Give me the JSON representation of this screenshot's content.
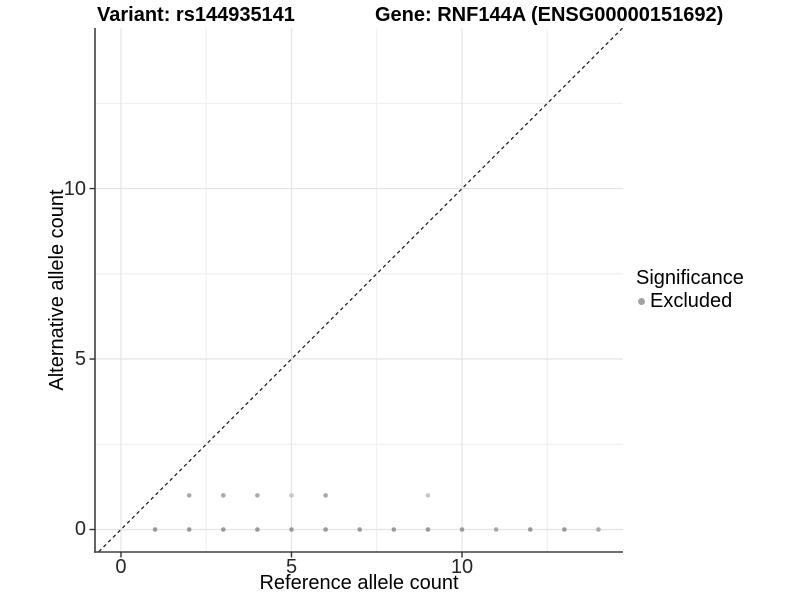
{
  "chart_data": {
    "type": "scatter",
    "title_left": "Variant: rs144935141",
    "title_right": "Gene: RNF144A (ENSG00000151692)",
    "xlabel": "Reference allele count",
    "ylabel": "Alternative allele count",
    "xlim": [
      -0.762,
      14.72
    ],
    "ylim": [
      -0.66,
      14.71
    ],
    "xticks": {
      "major": [
        0,
        5,
        10
      ],
      "minor": [
        2.5,
        7.5,
        12.5
      ],
      "labels": [
        "0",
        "5",
        "10"
      ]
    },
    "yticks": {
      "major": [
        0,
        5,
        10
      ],
      "minor": [
        2.5,
        7.5,
        12.5
      ],
      "labels": [
        "0",
        "5",
        "10"
      ]
    },
    "grid": true,
    "identity_line": {
      "type": "y=x",
      "style": "dashed"
    },
    "legend": {
      "title": "Significance",
      "position": "right",
      "items": [
        {
          "label": "Excluded",
          "color": "#a3a3a3"
        }
      ]
    },
    "points": [
      {
        "x": 1,
        "y": 0,
        "s": "d"
      },
      {
        "x": 2,
        "y": 0,
        "s": "d"
      },
      {
        "x": 3,
        "y": 0,
        "s": "d"
      },
      {
        "x": 4,
        "y": 0,
        "s": "d"
      },
      {
        "x": 5,
        "y": 0,
        "s": "d"
      },
      {
        "x": 6,
        "y": 0,
        "s": "d"
      },
      {
        "x": 7,
        "y": 0,
        "s": "d"
      },
      {
        "x": 8,
        "y": 0,
        "s": "d"
      },
      {
        "x": 9,
        "y": 0,
        "s": "d"
      },
      {
        "x": 10,
        "y": 0,
        "s": "d"
      },
      {
        "x": 11,
        "y": 0,
        "s": "m"
      },
      {
        "x": 12,
        "y": 0,
        "s": "d"
      },
      {
        "x": 13,
        "y": 0,
        "s": "d"
      },
      {
        "x": 14,
        "y": 0,
        "s": "m"
      },
      {
        "x": 2,
        "y": 1,
        "s": "m"
      },
      {
        "x": 3,
        "y": 1,
        "s": "m"
      },
      {
        "x": 4,
        "y": 1,
        "s": "m"
      },
      {
        "x": 5,
        "y": 1,
        "s": "l"
      },
      {
        "x": 6,
        "y": 1,
        "s": "m"
      },
      {
        "x": 9,
        "y": 1,
        "s": "l"
      }
    ],
    "colors": {
      "point_d": "#999999",
      "point_m": "#a9a9a9",
      "point_l": "#c8c8c8",
      "grid_major": "#e4e4e4",
      "grid_minor": "#eeeeee",
      "axis": "#404040",
      "tick": "#333333",
      "diagonal": "#1a1a1a",
      "legend_dot": "#a3a3a3"
    }
  }
}
